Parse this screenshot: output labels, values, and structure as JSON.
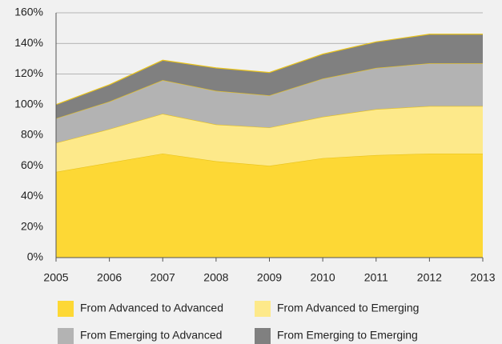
{
  "chart_data": {
    "type": "stacked_area",
    "x": [
      2005,
      2006,
      2007,
      2008,
      2009,
      2010,
      2011,
      2012,
      2013
    ],
    "xlim": [
      2005,
      2013
    ],
    "xticks": [
      2005,
      2006,
      2007,
      2008,
      2009,
      2010,
      2011,
      2012,
      2013
    ],
    "ylim": [
      0,
      160
    ],
    "yticks": [
      {
        "value": 0,
        "label": "0%"
      },
      {
        "value": 20,
        "label": "20%"
      },
      {
        "value": 40,
        "label": "40%"
      },
      {
        "value": 60,
        "label": "60%"
      },
      {
        "value": 80,
        "label": "80%"
      },
      {
        "value": 100,
        "label": "100%"
      },
      {
        "value": 120,
        "label": "120%"
      },
      {
        "value": 140,
        "label": "140%"
      },
      {
        "value": 160,
        "label": "160%"
      }
    ],
    "grid": true,
    "legend": "bottom",
    "series": [
      {
        "name": "From Advanced to Advanced",
        "color": "#fdd835",
        "values": [
          56,
          62,
          68,
          63,
          60,
          65,
          67,
          68,
          68
        ]
      },
      {
        "name": "From Advanced to Emerging",
        "color": "#fde98a",
        "values": [
          19,
          22,
          26,
          24,
          25,
          27,
          30,
          31,
          31
        ]
      },
      {
        "name": "From Emerging to Advanced",
        "color": "#b3b3b3",
        "values": [
          16,
          18,
          22,
          22,
          21,
          25,
          27,
          28,
          28
        ]
      },
      {
        "name": "From Emerging to Emerging",
        "color": "#808080",
        "values": [
          9,
          11,
          13,
          15,
          15,
          16,
          17,
          19,
          19
        ]
      }
    ]
  }
}
